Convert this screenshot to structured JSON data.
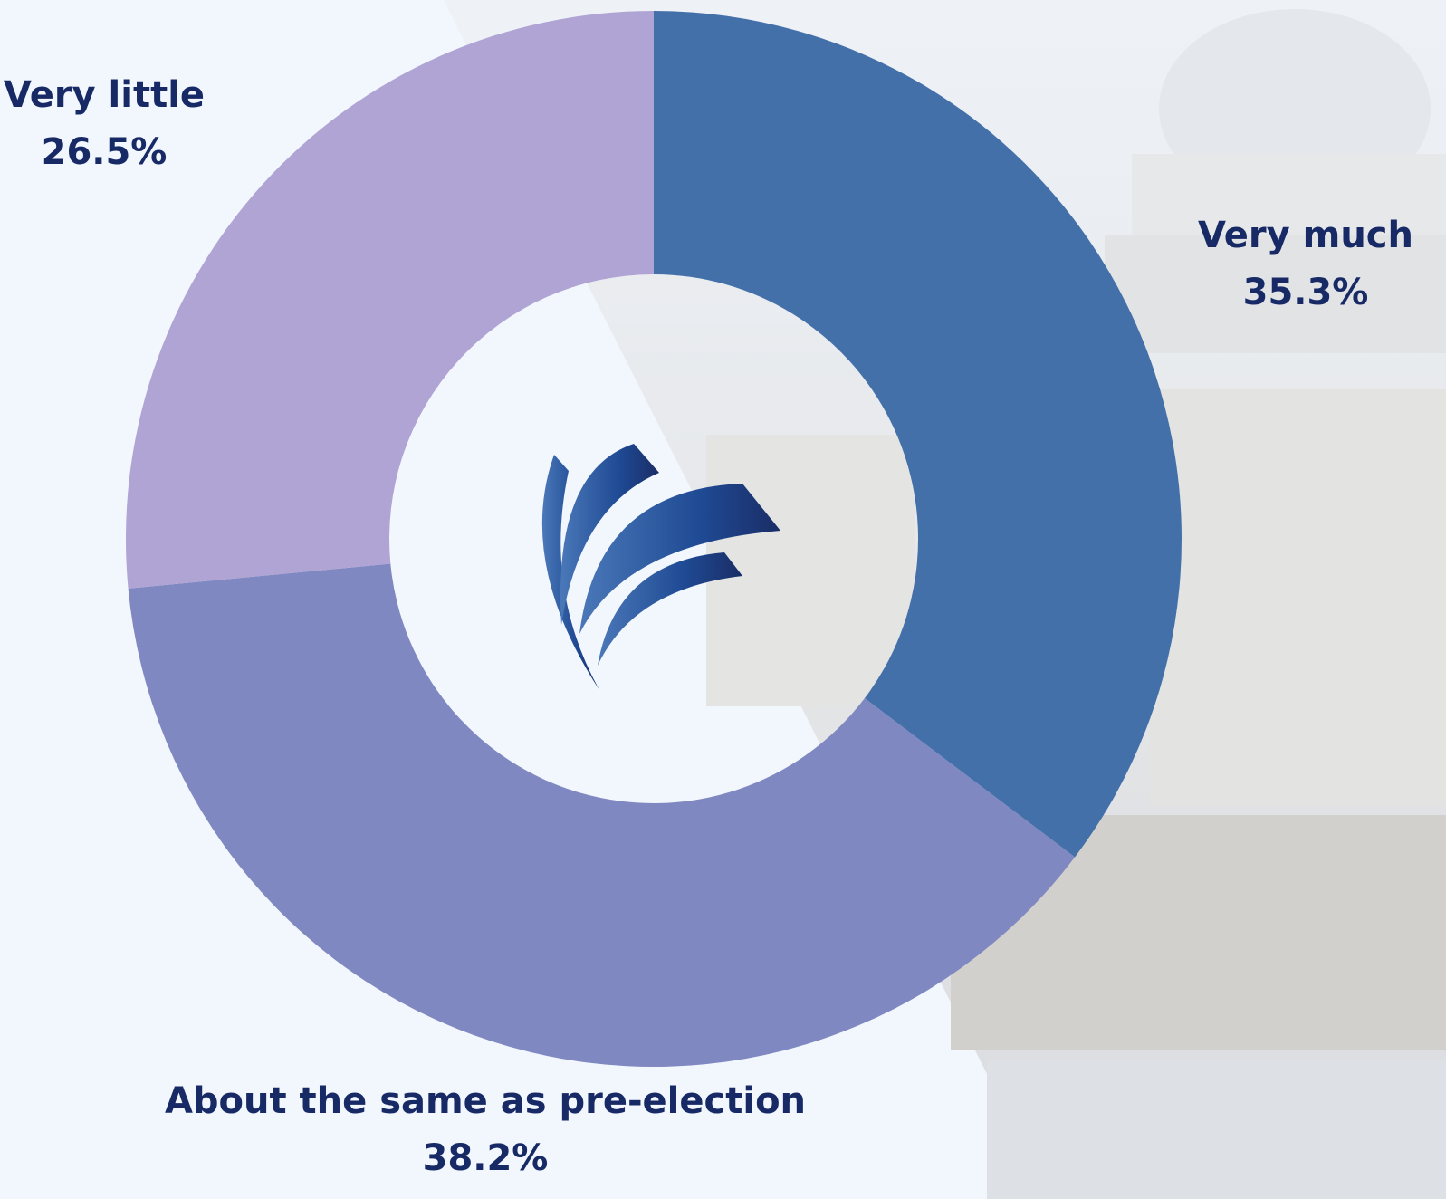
{
  "chart_data": {
    "type": "donut",
    "categories": [
      "Very much",
      "About the same as pre-election",
      "Very little"
    ],
    "values": [
      35.3,
      38.2,
      26.5
    ],
    "value_labels": [
      "35.3%",
      "38.2%",
      "26.5%"
    ],
    "colors": [
      "#4470aa",
      "#7f88c0",
      "#b0a4d5"
    ]
  }
}
